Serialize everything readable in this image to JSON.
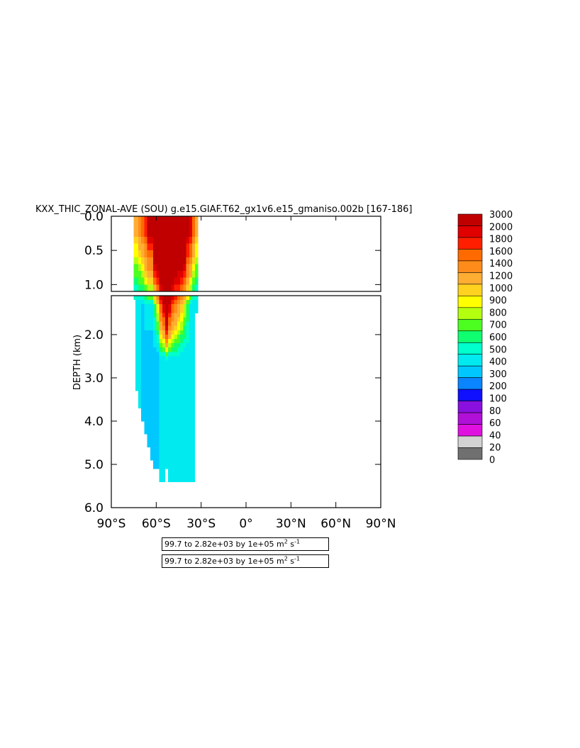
{
  "chart_data": {
    "type": "heatmap",
    "title": "KXX_THIC_ZONAL-AVE (SOU) g.e15.GIAF.T62_gx1v6.e15_gmaniso.002b [167-186]",
    "xlabel": "",
    "ylabel": "DEPTH (km)",
    "x_ticks": [
      "90°S",
      "60°S",
      "30°S",
      "0°",
      "30°N",
      "60°N",
      "90°N"
    ],
    "x_range": [
      -90,
      90
    ],
    "y_ticks_upper": [
      "0.0",
      "0.5",
      "1.0"
    ],
    "y_ticks_lower": [
      "2.0",
      "3.0",
      "4.0",
      "5.0",
      "6.0"
    ],
    "y_range": [
      0,
      6
    ],
    "panel_split_depth_km": 1.1,
    "grid": false,
    "legend_placement": "right",
    "colorbar": {
      "levels": [
        "3000",
        "2000",
        "1800",
        "1600",
        "1400",
        "1200",
        "1000",
        "900",
        "800",
        "700",
        "600",
        "500",
        "400",
        "300",
        "200",
        "100",
        "80",
        "60",
        "40",
        "20",
        "0"
      ],
      "colors": [
        "#c00000",
        "#e00000",
        "#ff1f00",
        "#ff6a00",
        "#ff8c1a",
        "#ffad33",
        "#ffd21f",
        "#ffff00",
        "#b4ff10",
        "#4dff20",
        "#10ff70",
        "#00ffcc",
        "#00eaf0",
        "#00c8ff",
        "#0a84ff",
        "#1010ff",
        "#8a10e0",
        "#b010d8",
        "#e010e0",
        "#d2d2d2",
        "#707070"
      ]
    },
    "depth_profiles": [
      {
        "lat": -74,
        "bottom_km": 1.2,
        "surface": 1000,
        "upper": 300,
        "deep": 300
      },
      {
        "lat": -73,
        "bottom_km": 3.3,
        "surface": 1000,
        "upper": 300,
        "deep": 300
      },
      {
        "lat": -71,
        "bottom_km": 3.7,
        "surface": 1200,
        "upper": 300,
        "deep": 300
      },
      {
        "lat": -69,
        "bottom_km": 4.0,
        "surface": 1400,
        "upper": 300,
        "deep": 200
      },
      {
        "lat": -67,
        "bottom_km": 4.3,
        "surface": 1600,
        "upper": 400,
        "deep": 200
      },
      {
        "lat": -65,
        "bottom_km": 4.6,
        "surface": 2000,
        "upper": 400,
        "deep": 200
      },
      {
        "lat": -63,
        "bottom_km": 4.9,
        "surface": 2000,
        "upper": 400,
        "deep": 200
      },
      {
        "lat": -61,
        "bottom_km": 5.1,
        "surface": 3000,
        "upper": 600,
        "deep": 200
      },
      {
        "lat": -59,
        "bottom_km": 5.1,
        "surface": 3000,
        "upper": 900,
        "deep": 200
      },
      {
        "lat": -57,
        "bottom_km": 5.4,
        "surface": 3000,
        "upper": 1600,
        "deep": 300
      },
      {
        "lat": -55,
        "bottom_km": 5.4,
        "surface": 3000,
        "upper": 2000,
        "deep": 300
      },
      {
        "lat": -53,
        "bottom_km": 5.1,
        "surface": 3000,
        "upper": 3000,
        "deep": 300
      },
      {
        "lat": -51,
        "bottom_km": 5.4,
        "surface": 3000,
        "upper": 2000,
        "deep": 300
      },
      {
        "lat": -49,
        "bottom_km": 5.4,
        "surface": 3000,
        "upper": 1600,
        "deep": 300
      },
      {
        "lat": -47,
        "bottom_km": 5.4,
        "surface": 3000,
        "upper": 1400,
        "deep": 300
      },
      {
        "lat": -45,
        "bottom_km": 5.4,
        "surface": 3000,
        "upper": 1200,
        "deep": 300
      },
      {
        "lat": -43,
        "bottom_km": 5.4,
        "surface": 3000,
        "upper": 1000,
        "deep": 300
      },
      {
        "lat": -41,
        "bottom_km": 5.4,
        "surface": 3000,
        "upper": 800,
        "deep": 300
      },
      {
        "lat": -39,
        "bottom_km": 5.4,
        "surface": 2000,
        "upper": 600,
        "deep": 300
      },
      {
        "lat": -37,
        "bottom_km": 5.4,
        "surface": 1800,
        "upper": 400,
        "deep": 300
      },
      {
        "lat": -35,
        "bottom_km": 5.4,
        "surface": 1400,
        "upper": 300,
        "deep": 300
      },
      {
        "lat": -33,
        "bottom_km": 1.5,
        "surface": 1000,
        "upper": 300,
        "deep": 300
      }
    ]
  },
  "notes": [
    {
      "text": "99.7 to 2.82e+03 by 1e+05 m",
      "sup": "2",
      "unit": " s",
      "sup2": "-1"
    },
    {
      "text": "99.7 to 2.82e+03 by 1e+05 m",
      "sup": "2",
      "unit": " s",
      "sup2": "-1"
    }
  ]
}
